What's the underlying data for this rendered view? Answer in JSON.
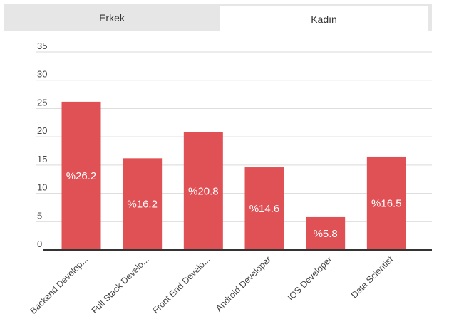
{
  "tabs": [
    {
      "label": "Erkek",
      "selected": false
    },
    {
      "label": "Kadın",
      "selected": true
    }
  ],
  "colors": {
    "bar": "#e05155",
    "grid": "#d9d9d9",
    "axis": "#333333",
    "tab_bg": "#e6e6e6"
  },
  "chart_data": {
    "type": "bar",
    "title": "",
    "xlabel": "",
    "ylabel": "",
    "ylim": [
      0,
      35
    ],
    "yticks": [
      "0",
      "5",
      "10",
      "15",
      "20",
      "25",
      "30",
      "35"
    ],
    "grid": true,
    "categories": [
      "Backend Develop...",
      "Full Stack Develo...",
      "Front End Develo...",
      "Android Developer",
      "IOS Developer",
      "Data Scientist"
    ],
    "values": [
      26.2,
      16.2,
      20.8,
      14.6,
      5.8,
      16.5
    ],
    "value_labels": [
      "%26.2",
      "%16.2",
      "%20.8",
      "%14.6",
      "%5.8",
      "%16.5"
    ]
  }
}
